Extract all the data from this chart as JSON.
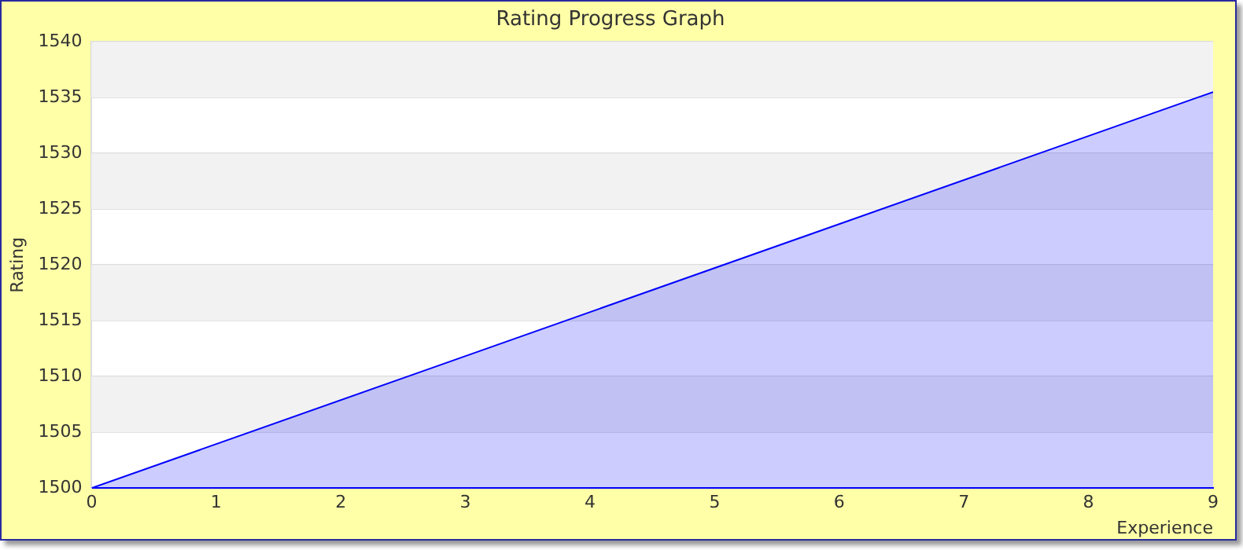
{
  "chart_data": {
    "type": "area",
    "title": "Rating Progress Graph",
    "xlabel": "Experience",
    "ylabel": "Rating",
    "x": [
      0,
      9
    ],
    "series": [
      {
        "color": "#0000ff",
        "values": [
          1500,
          1535.5
        ]
      }
    ],
    "xlim": [
      0,
      9
    ],
    "xticks": [
      0,
      1,
      2,
      3,
      4,
      5,
      6,
      7,
      8,
      9
    ],
    "ylim": [
      1500,
      1540
    ],
    "yticks": [
      1500,
      1505,
      1510,
      1515,
      1520,
      1525,
      1530,
      1535,
      1540
    ],
    "grid": "y",
    "legend": false
  }
}
